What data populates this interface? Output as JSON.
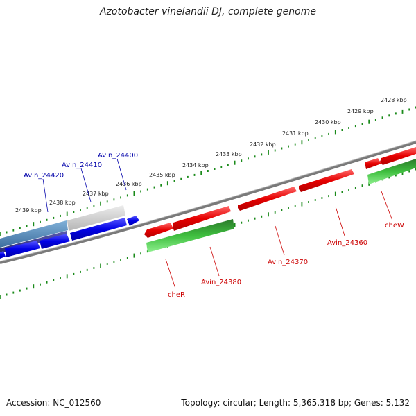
{
  "title": "Azotobacter vinelandii DJ, complete genome",
  "footer": {
    "accession": "Accession: NC_012560",
    "summary": "Topology: circular; Length: 5,365,318 bp; Genes: 5,132"
  },
  "colors": {
    "forward_gene": "#e00000",
    "reverse_gene": "#0000e0",
    "highlight_gene": "#2ea02e",
    "backbone": "#808080",
    "tick": "#1a8a1a",
    "label_red": "#cc0000",
    "label_blue": "#0000aa"
  },
  "scale_ticks": [
    {
      "label": "2428 kbp",
      "kbp": 2428
    },
    {
      "label": "2429 kbp",
      "kbp": 2429
    },
    {
      "label": "2430 kbp",
      "kbp": 2430
    },
    {
      "label": "2431 kbp",
      "kbp": 2431
    },
    {
      "label": "2432 kbp",
      "kbp": 2432
    },
    {
      "label": "2433 kbp",
      "kbp": 2433
    },
    {
      "label": "2434 kbp",
      "kbp": 2434
    },
    {
      "label": "2435 kbp",
      "kbp": 2435
    },
    {
      "label": "2436 kbp",
      "kbp": 2436
    },
    {
      "label": "2437 kbp",
      "kbp": 2437
    },
    {
      "label": "2438 kbp",
      "kbp": 2438
    },
    {
      "label": "2439 kbp",
      "kbp": 2439
    }
  ],
  "gene_labels": [
    {
      "text": "cheW",
      "strand": "forward"
    },
    {
      "text": "Avin_24360",
      "strand": "forward"
    },
    {
      "text": "Avin_24370",
      "strand": "forward"
    },
    {
      "text": "Avin_24380",
      "strand": "forward"
    },
    {
      "text": "cheR",
      "strand": "forward"
    },
    {
      "text": "Avin_24400",
      "strand": "reverse"
    },
    {
      "text": "Avin_24410",
      "strand": "reverse"
    },
    {
      "text": "Avin_24420",
      "strand": "reverse"
    }
  ]
}
